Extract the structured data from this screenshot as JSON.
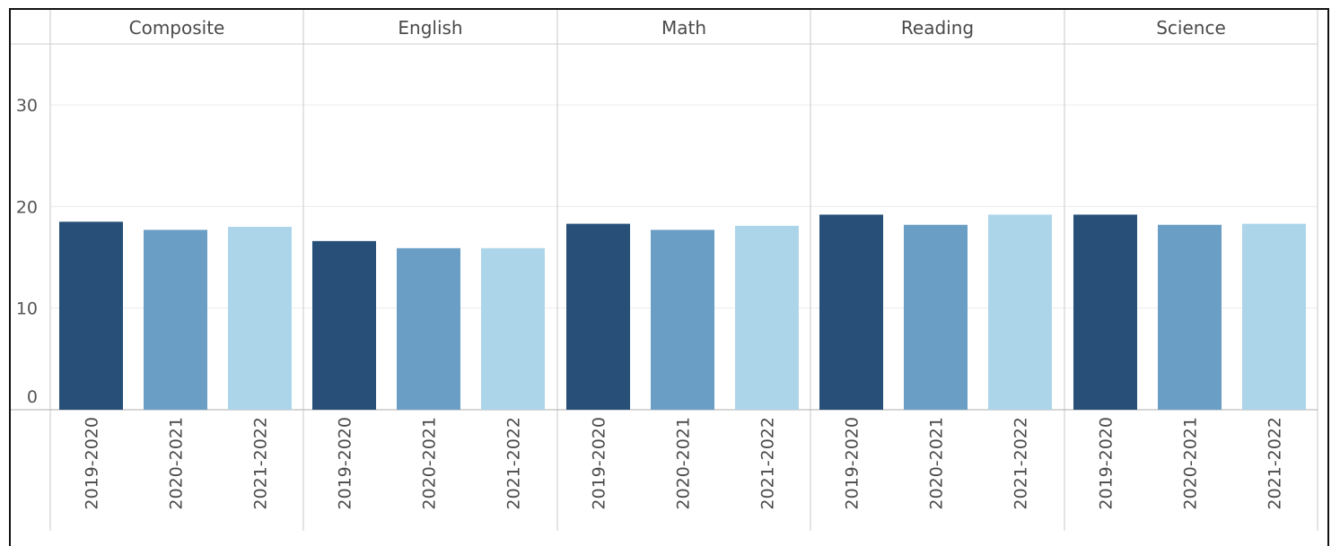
{
  "chart_data": {
    "type": "bar",
    "panels": [
      "Composite",
      "English",
      "Math",
      "Reading",
      "Science"
    ],
    "categories": [
      "2019-2020",
      "2020-2021",
      "2021-2022"
    ],
    "series": [
      {
        "values": [
          18.5,
          17.7,
          18.0
        ]
      },
      {
        "values": [
          16.6,
          15.9,
          15.9
        ]
      },
      {
        "values": [
          18.3,
          17.7,
          18.1
        ]
      },
      {
        "values": [
          19.2,
          18.2,
          19.2
        ]
      },
      {
        "values": [
          19.2,
          18.2,
          18.3
        ]
      }
    ],
    "colors": [
      "#274f78",
      "#6a9ec5",
      "#add5ea"
    ],
    "yticks": [
      0,
      10,
      20,
      30
    ],
    "ylim": [
      0,
      36
    ],
    "grid": true,
    "legend": "none",
    "title": "",
    "xlabel": "",
    "ylabel": ""
  }
}
